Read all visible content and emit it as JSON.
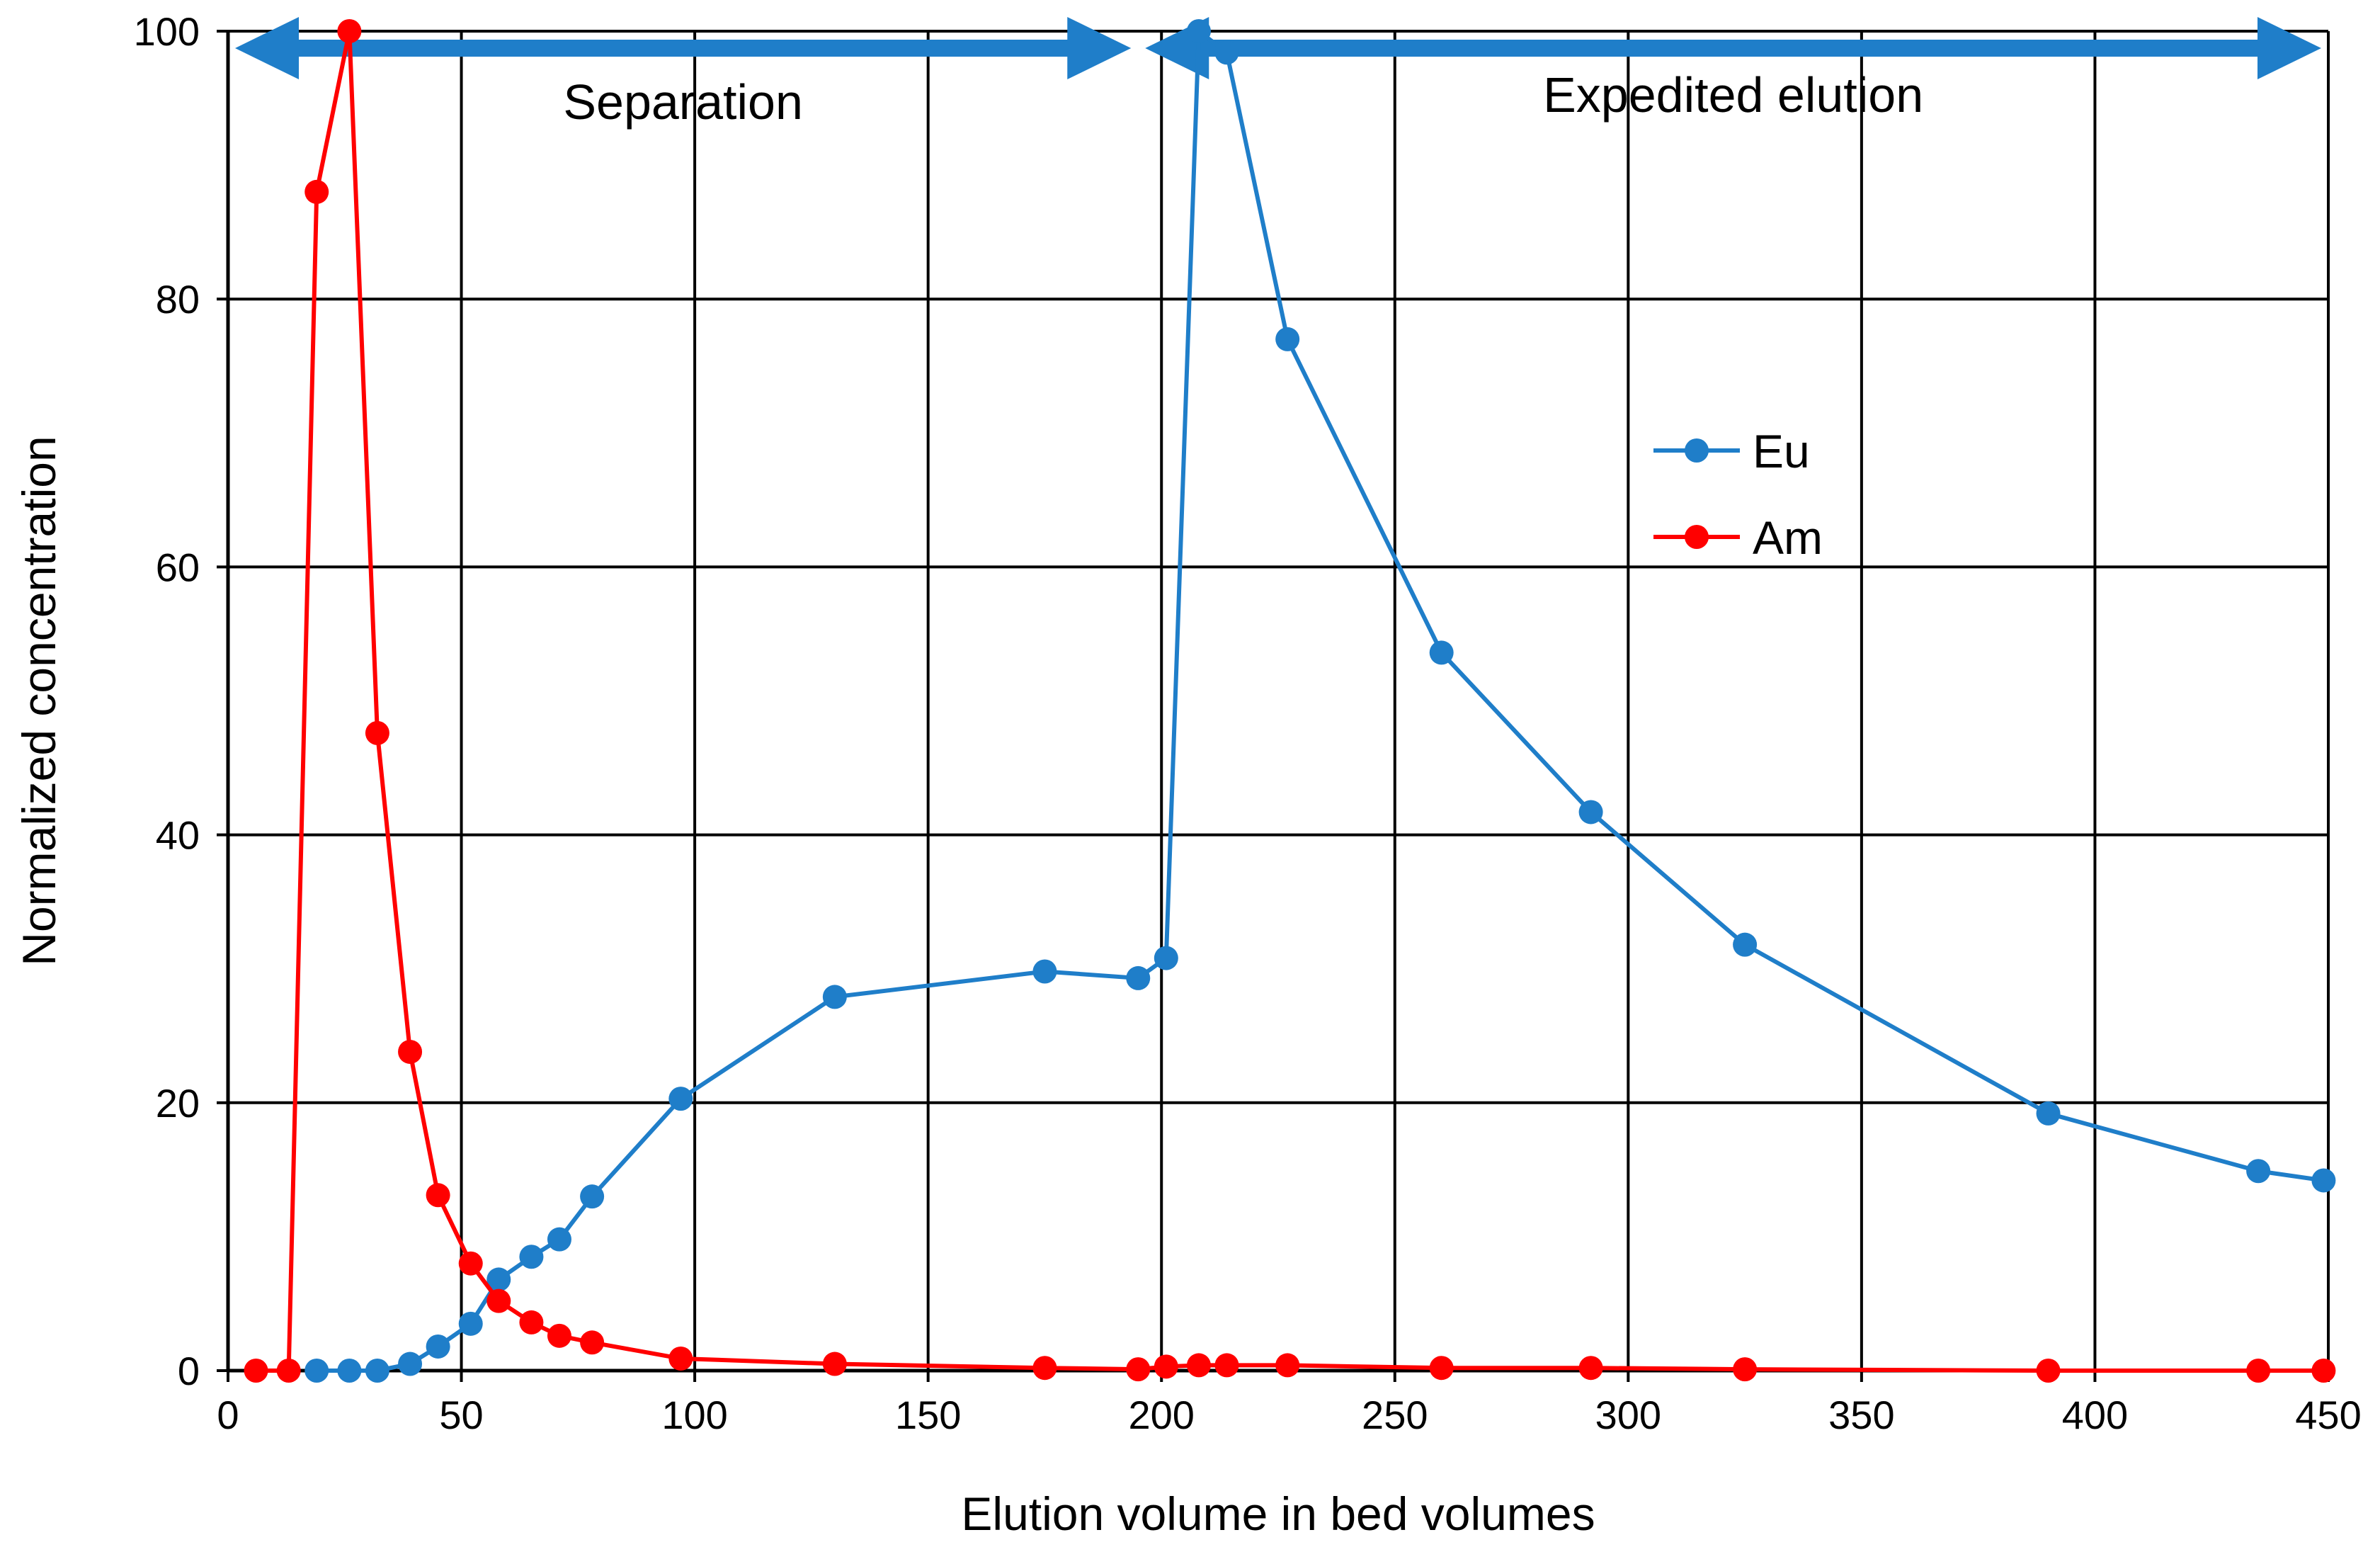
{
  "chart_data": {
    "type": "line",
    "title": "",
    "xlabel": "Elution volume in bed volumes",
    "ylabel": "Normalized concentration",
    "xlim": [
      0,
      450
    ],
    "ylim": [
      0,
      100
    ],
    "x_ticks": [
      0,
      50,
      100,
      150,
      200,
      250,
      300,
      350,
      400,
      450
    ],
    "y_ticks": [
      0,
      20,
      40,
      60,
      80,
      100
    ],
    "x_tick_labels": [
      "0",
      "50",
      "100",
      "150",
      "200",
      "250",
      "300",
      "350",
      "400",
      "450"
    ],
    "y_tick_labels": [
      "0",
      "20",
      "40",
      "60",
      "80",
      "100"
    ],
    "grid": true,
    "legend_position": "upper-middle-right",
    "phases": [
      {
        "label": "Separation",
        "x_start": 0,
        "x_end": 195
      },
      {
        "label": "Expedited elution",
        "x_start": 195,
        "x_end": 450
      }
    ],
    "series": [
      {
        "name": "Eu",
        "color": "#1f7ec9",
        "x": [
          19,
          26,
          32,
          39,
          45,
          52,
          58,
          65,
          71,
          78,
          97,
          130,
          175,
          195,
          201,
          208,
          214,
          227,
          260,
          292,
          325,
          390,
          435,
          449
        ],
        "values": [
          0,
          0,
          0,
          0.5,
          1.8,
          3.5,
          6.8,
          8.5,
          9.8,
          13,
          20.3,
          27.9,
          29.8,
          29.3,
          30.8,
          100,
          98.4,
          77,
          53.6,
          41.7,
          31.8,
          19.2,
          14.9,
          14.2
        ]
      },
      {
        "name": "Am",
        "color": "#ff0000",
        "x": [
          6,
          13,
          19,
          26,
          32,
          39,
          45,
          52,
          58,
          65,
          71,
          78,
          97,
          130,
          175,
          195,
          201,
          208,
          214,
          227,
          260,
          292,
          325,
          390,
          435,
          449
        ],
        "values": [
          0,
          0,
          88,
          100,
          47.6,
          23.8,
          13.1,
          8,
          5.2,
          3.6,
          2.6,
          2.1,
          0.9,
          0.5,
          0.2,
          0.1,
          0.3,
          0.4,
          0.4,
          0.4,
          0.2,
          0.2,
          0.1,
          0,
          0,
          0
        ]
      }
    ]
  }
}
